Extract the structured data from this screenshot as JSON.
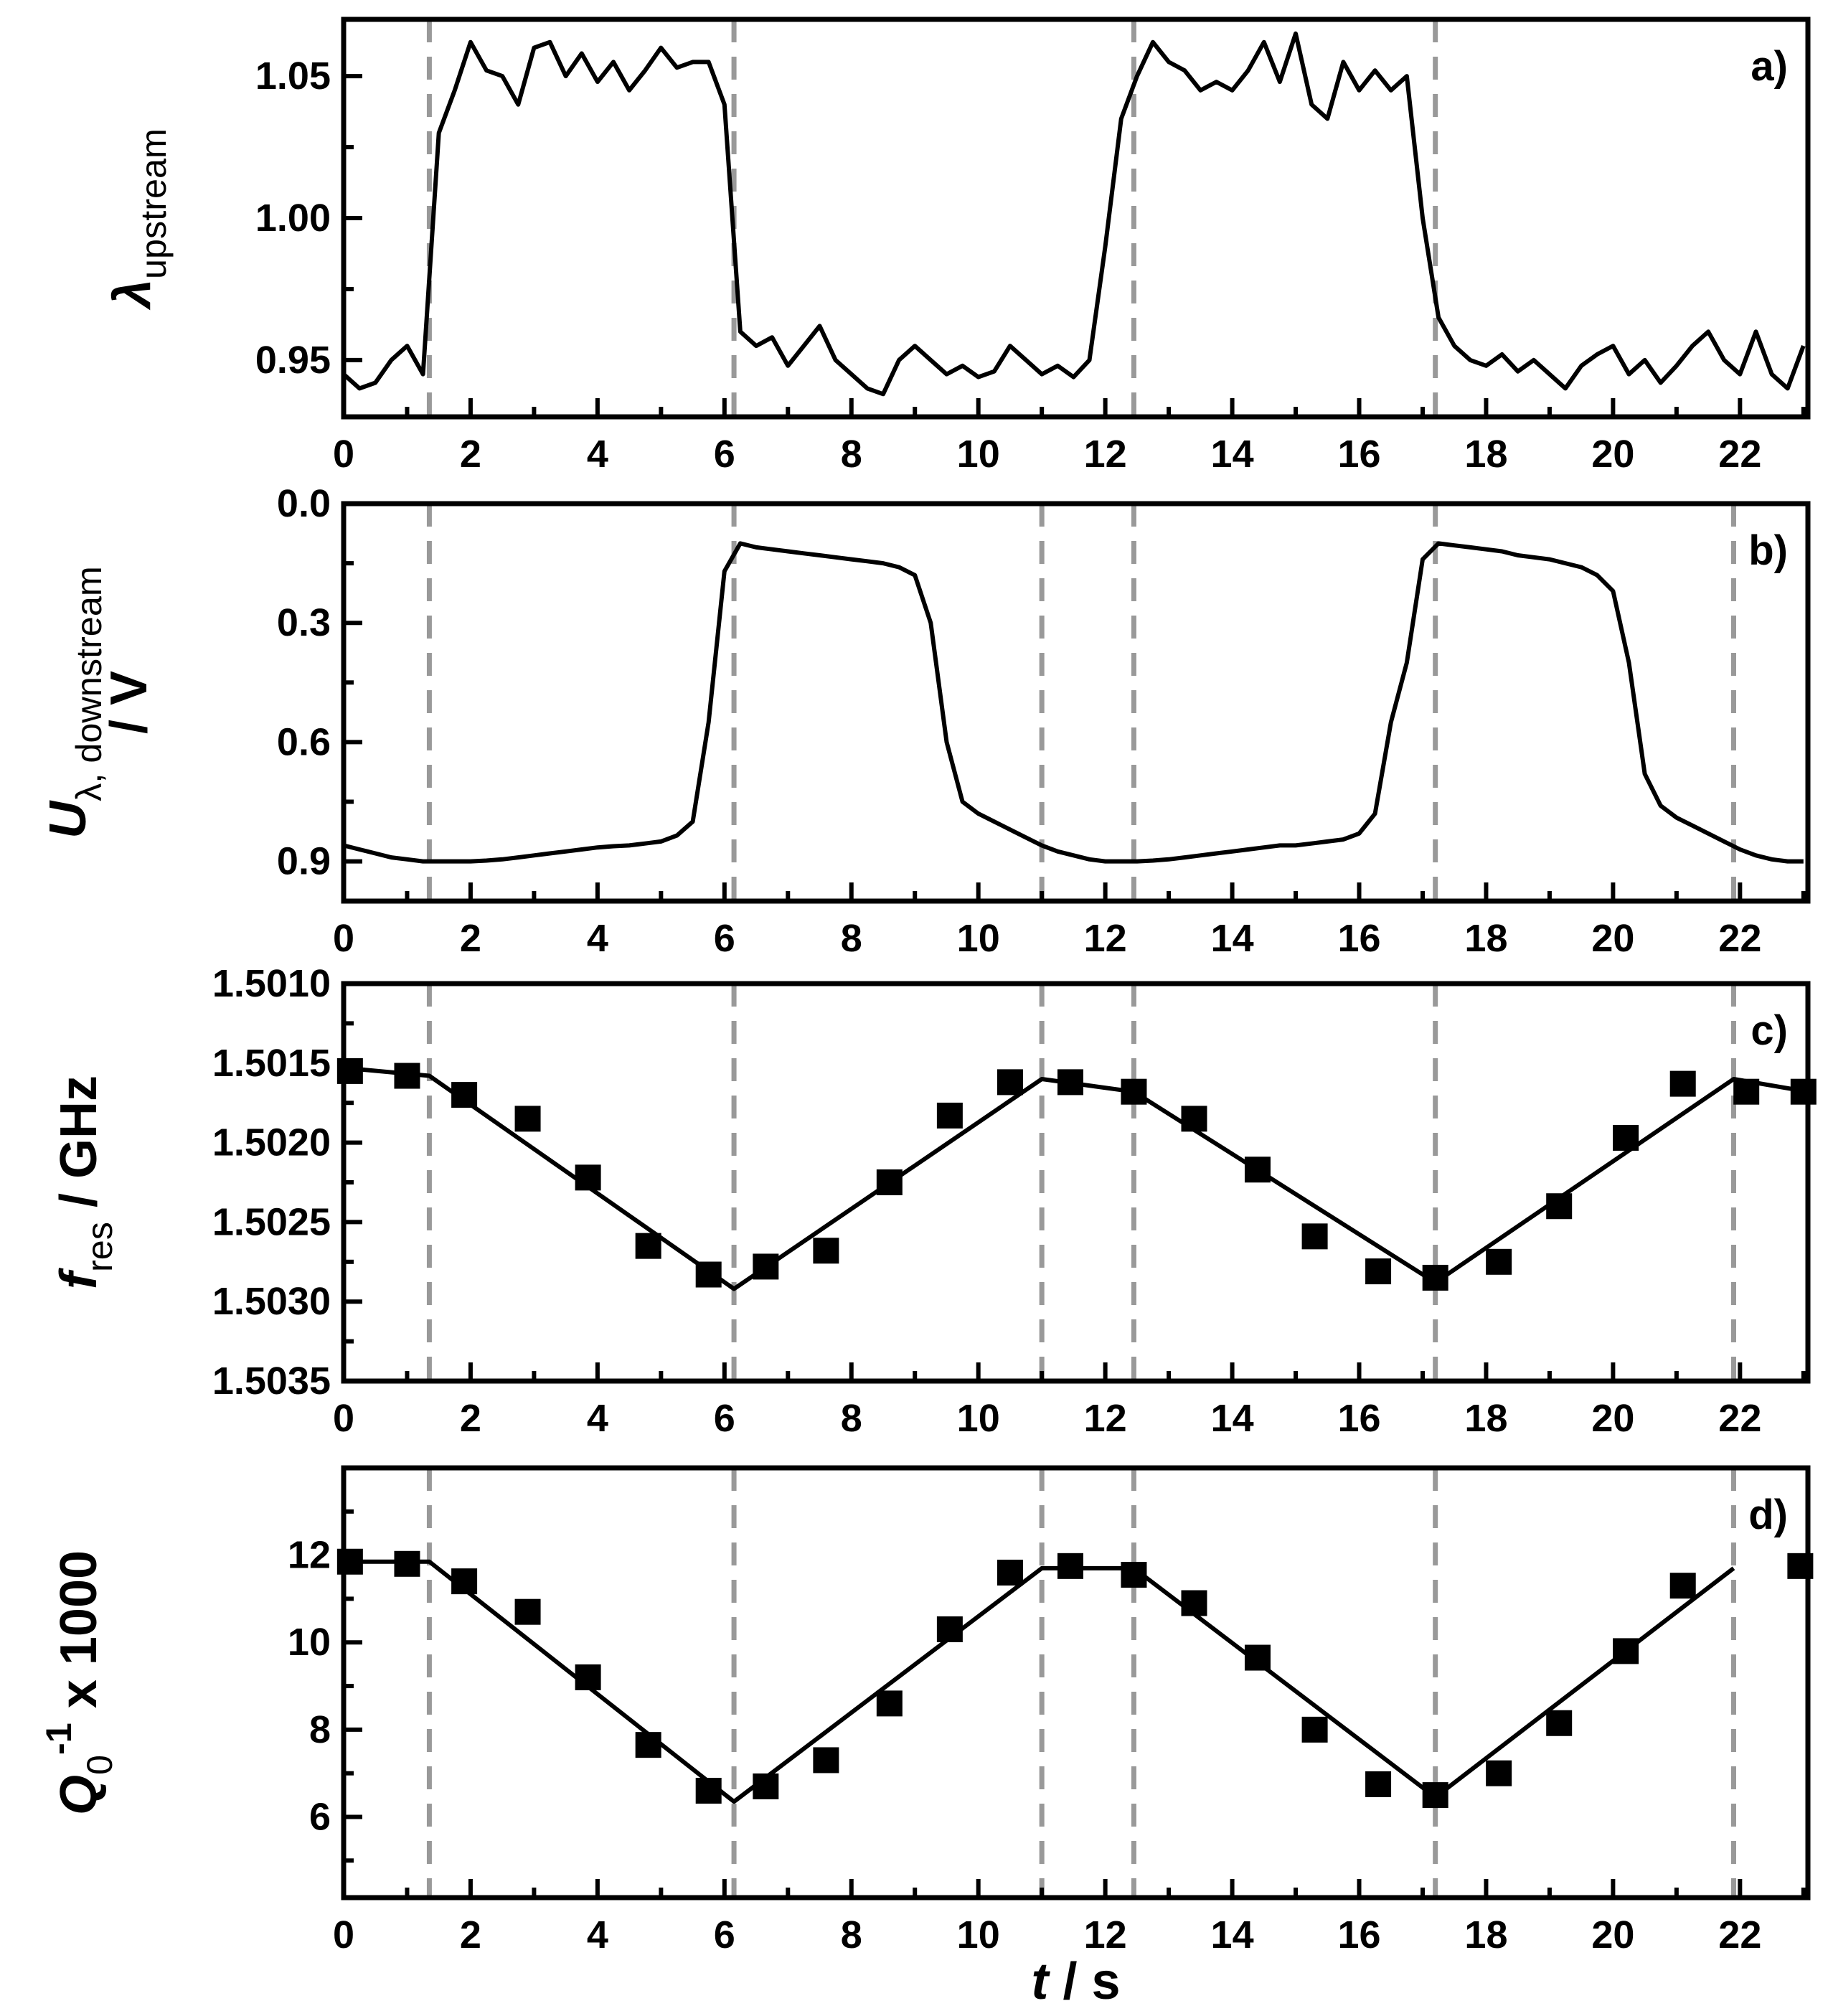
{
  "chart_data": [
    {
      "type": "line",
      "panel_label": "a)",
      "ylabel": [
        [
          {
            "text": "λ",
            "style": "italic"
          },
          {
            "text": "upstream",
            "style": "sub"
          }
        ]
      ],
      "xlim": [
        0,
        23.07
      ],
      "xticks": [
        0,
        2,
        4,
        6,
        8,
        10,
        12,
        14,
        16,
        18,
        20,
        22
      ],
      "xminor": [
        1,
        3,
        5,
        7,
        9,
        11,
        13,
        15,
        17,
        19,
        21,
        23
      ],
      "ylim": [
        0.93,
        1.07
      ],
      "yticks": [
        0.95,
        {
          "value": 1,
          "label": "1.00"
        },
        1.05
      ],
      "yminor": [
        0.975,
        1.025
      ],
      "vlines": [
        1.35,
        6.15,
        12.45,
        17.2
      ],
      "vline_color": "#999999",
      "series": [
        {
          "type": "line",
          "color": "#000000",
          "x": [
            0,
            0.25,
            0.5,
            0.75,
            1,
            1.25,
            1.5,
            1.75,
            2,
            2.25,
            2.5,
            2.75,
            3,
            3.25,
            3.5,
            3.75,
            4,
            4.25,
            4.5,
            4.75,
            5,
            5.25,
            5.5,
            5.75,
            6,
            6.25,
            6.5,
            6.75,
            7,
            7.25,
            7.5,
            7.75,
            8,
            8.25,
            8.5,
            8.75,
            9,
            9.25,
            9.5,
            9.75,
            10,
            10.25,
            10.5,
            10.75,
            11,
            11.25,
            11.5,
            11.75,
            12,
            12.25,
            12.5,
            12.75,
            13,
            13.25,
            13.5,
            13.75,
            14,
            14.25,
            14.5,
            14.75,
            15,
            15.25,
            15.5,
            15.75,
            16,
            16.25,
            16.5,
            16.75,
            17,
            17.25,
            17.5,
            17.75,
            18,
            18.25,
            18.5,
            18.75,
            19,
            19.25,
            19.5,
            19.75,
            20,
            20.25,
            20.5,
            20.75,
            21,
            21.25,
            21.5,
            21.75,
            22,
            22.25,
            22.5,
            22.75,
            23
          ],
          "values": [
            0.945,
            0.94,
            0.942,
            0.95,
            0.955,
            0.945,
            1.03,
            1.045,
            1.062,
            1.052,
            1.05,
            1.04,
            1.06,
            1.062,
            1.05,
            1.058,
            1.048,
            1.055,
            1.045,
            1.052,
            1.06,
            1.053,
            1.055,
            1.055,
            1.04,
            0.96,
            0.955,
            0.958,
            0.948,
            0.955,
            0.962,
            0.95,
            0.945,
            0.94,
            0.938,
            0.95,
            0.955,
            0.95,
            0.945,
            0.948,
            0.944,
            0.946,
            0.955,
            0.95,
            0.945,
            0.948,
            0.944,
            0.95,
            0.99,
            1.035,
            1.05,
            1.062,
            1.055,
            1.052,
            1.045,
            1.048,
            1.045,
            1.052,
            1.062,
            1.048,
            1.065,
            1.04,
            1.035,
            1.055,
            1.045,
            1.052,
            1.045,
            1.05,
            1.0,
            0.965,
            0.955,
            0.95,
            0.948,
            0.952,
            0.946,
            0.95,
            0.945,
            0.94,
            0.948,
            0.952,
            0.955,
            0.945,
            0.95,
            0.942,
            0.948,
            0.955,
            0.96,
            0.95,
            0.945,
            0.96,
            0.945,
            0.94,
            0.955
          ]
        }
      ]
    },
    {
      "type": "line",
      "panel_label": "b)",
      "ylabel": [
        [
          {
            "text": "U",
            "style": "italic"
          },
          {
            "text": "λ, downstream",
            "style": "sub"
          }
        ],
        [
          {
            "text": "/ V",
            "style": "normal"
          }
        ]
      ],
      "xlim": [
        0,
        23.07
      ],
      "xticks": [
        0,
        2,
        4,
        6,
        8,
        10,
        12,
        14,
        16,
        18,
        20,
        22
      ],
      "xminor": [
        1,
        3,
        5,
        7,
        9,
        11,
        13,
        15,
        17,
        19,
        21,
        23
      ],
      "ylim": [
        1.0,
        0.0
      ],
      "yticks": [
        {
          "value": 0,
          "label": "0.0"
        },
        0.3,
        0.6,
        0.9
      ],
      "yminor": [
        0.15,
        0.45,
        0.75
      ],
      "vlines": [
        1.35,
        6.15,
        11.0,
        12.45,
        17.2,
        21.9
      ],
      "vline_color": "#999999",
      "series": [
        {
          "type": "line",
          "color": "#000000",
          "x": [
            0,
            0.25,
            0.5,
            0.75,
            1,
            1.25,
            1.5,
            1.75,
            2,
            2.25,
            2.5,
            2.75,
            3,
            3.25,
            3.5,
            3.75,
            4,
            4.25,
            4.5,
            4.75,
            5,
            5.25,
            5.5,
            5.75,
            6,
            6.25,
            6.5,
            6.75,
            7,
            7.25,
            7.5,
            7.75,
            8,
            8.25,
            8.5,
            8.75,
            9,
            9.25,
            9.5,
            9.75,
            10,
            10.25,
            10.5,
            10.75,
            11,
            11.25,
            11.5,
            11.75,
            12,
            12.25,
            12.5,
            12.75,
            13,
            13.25,
            13.5,
            13.75,
            14,
            14.25,
            14.5,
            14.75,
            15,
            15.25,
            15.5,
            15.75,
            16,
            16.25,
            16.5,
            16.75,
            17,
            17.25,
            17.5,
            17.75,
            18,
            18.25,
            18.5,
            18.75,
            19,
            19.25,
            19.5,
            19.75,
            20,
            20.25,
            20.5,
            20.75,
            21,
            21.25,
            21.5,
            21.75,
            22,
            22.25,
            22.5,
            22.75,
            23
          ],
          "values": [
            0.86,
            0.87,
            0.88,
            0.89,
            0.895,
            0.9,
            0.9,
            0.9,
            0.9,
            0.898,
            0.895,
            0.89,
            0.885,
            0.88,
            0.875,
            0.87,
            0.865,
            0.862,
            0.86,
            0.855,
            0.85,
            0.835,
            0.8,
            0.55,
            0.17,
            0.1,
            0.11,
            0.115,
            0.12,
            0.125,
            0.13,
            0.135,
            0.14,
            0.145,
            0.15,
            0.16,
            0.18,
            0.3,
            0.6,
            0.75,
            0.78,
            0.8,
            0.82,
            0.84,
            0.86,
            0.875,
            0.885,
            0.895,
            0.9,
            0.9,
            0.9,
            0.898,
            0.895,
            0.89,
            0.885,
            0.88,
            0.875,
            0.87,
            0.865,
            0.86,
            0.86,
            0.855,
            0.85,
            0.845,
            0.83,
            0.78,
            0.55,
            0.4,
            0.14,
            0.1,
            0.105,
            0.11,
            0.115,
            0.12,
            0.13,
            0.135,
            0.14,
            0.15,
            0.16,
            0.18,
            0.22,
            0.4,
            0.68,
            0.76,
            0.79,
            0.81,
            0.83,
            0.85,
            0.87,
            0.885,
            0.895,
            0.9,
            0.9
          ]
        }
      ]
    },
    {
      "type": "scatter",
      "panel_label": "c)",
      "ylabel": [
        [
          {
            "text": "f",
            "style": "italic"
          },
          {
            "text": "res",
            "style": "sub"
          },
          {
            "text": " / GHz",
            "style": "normal"
          }
        ]
      ],
      "xlim": [
        0,
        23.07
      ],
      "xticks": [
        0,
        2,
        4,
        6,
        8,
        10,
        12,
        14,
        16,
        18,
        20,
        22
      ],
      "xminor": [
        1,
        3,
        5,
        7,
        9,
        11,
        13,
        15,
        17,
        19,
        21,
        23
      ],
      "ylim": [
        1.5035,
        1.501
      ],
      "yticks": [
        {
          "value": 1.501,
          "label": "1.5010"
        },
        1.5015,
        {
          "value": 1.502,
          "label": "1.5020"
        },
        1.5025,
        {
          "value": 1.503,
          "label": "1.5030"
        },
        1.5035
      ],
      "yminor": [
        1.50125,
        1.50175,
        1.50225,
        1.50275,
        1.50325
      ],
      "vlines": [
        1.35,
        6.15,
        11.0,
        12.45,
        17.2,
        21.9
      ],
      "vline_color": "#999999",
      "series": [
        {
          "type": "scatter",
          "color": "#000000",
          "x": [
            0.1,
            1.0,
            1.9,
            2.9,
            3.85,
            4.8,
            5.75,
            6.65,
            7.6,
            8.6,
            9.55,
            10.5,
            11.45,
            12.45,
            13.4,
            14.4,
            15.3,
            16.3,
            17.2,
            18.2,
            19.15,
            20.2,
            21.1,
            22.1,
            23.0
          ],
          "values": [
            1.50155,
            1.50158,
            1.5017,
            1.50185,
            1.50222,
            1.50265,
            1.50283,
            1.50278,
            1.50268,
            1.50225,
            1.50183,
            1.50162,
            1.50162,
            1.50168,
            1.50185,
            1.50217,
            1.50259,
            1.50281,
            1.50285,
            1.50275,
            1.5024,
            1.50197,
            1.50163,
            1.50168,
            1.50168
          ]
        },
        {
          "type": "line",
          "color": "#000000",
          "x": [
            0,
            1.35,
            6.15,
            11.0,
            12.45,
            17.2,
            21.9,
            23.07
          ],
          "values": [
            1.50153,
            1.50158,
            1.50292,
            1.5016,
            1.50168,
            1.50288,
            1.5016,
            1.50168
          ]
        }
      ]
    },
    {
      "type": "scatter",
      "panel_label": "d)",
      "ylabel": [
        [
          {
            "text": "Q",
            "style": "italic"
          },
          {
            "text": "0",
            "style": "sub"
          },
          {
            "text": "-1",
            "style": "sup"
          },
          {
            "text": " x 1000",
            "style": "normal"
          }
        ]
      ],
      "xlabel": [
        {
          "text": "t",
          "style": "italic"
        },
        {
          "text": " / s",
          "style": "normal"
        }
      ],
      "xlim": [
        0,
        23.07
      ],
      "xticks": [
        0,
        2,
        4,
        6,
        8,
        10,
        12,
        14,
        16,
        18,
        20,
        22
      ],
      "xminor": [
        1,
        3,
        5,
        7,
        9,
        11,
        13,
        15,
        17,
        19,
        21,
        23
      ],
      "ylim": [
        4.15,
        14
      ],
      "yticks": [
        6,
        8,
        10,
        12
      ],
      "yminor": [
        5,
        7,
        9,
        11,
        13
      ],
      "vlines": [
        1.35,
        6.15,
        11.0,
        12.45,
        17.2,
        21.9
      ],
      "vline_color": "#999999",
      "series": [
        {
          "type": "scatter",
          "color": "#000000",
          "x": [
            0.1,
            1.0,
            1.9,
            2.9,
            3.85,
            4.8,
            5.75,
            6.65,
            7.6,
            8.6,
            9.55,
            10.5,
            11.45,
            12.45,
            13.4,
            14.4,
            15.3,
            16.3,
            17.2,
            18.2,
            19.15,
            20.2,
            21.1,
            22.95
          ],
          "values": [
            11.85,
            11.8,
            11.4,
            10.7,
            9.2,
            7.65,
            6.6,
            6.7,
            7.3,
            8.6,
            10.3,
            11.6,
            11.75,
            11.55,
            10.9,
            9.65,
            8.0,
            6.75,
            6.5,
            7.0,
            8.15,
            9.8,
            11.3,
            11.75
          ]
        },
        {
          "type": "line",
          "color": "#000000",
          "x": [
            0,
            1.35,
            6.15,
            11.0,
            12.45,
            17.2,
            21.9
          ],
          "values": [
            11.85,
            11.85,
            6.35,
            11.7,
            11.7,
            6.45,
            11.7
          ]
        }
      ]
    }
  ]
}
